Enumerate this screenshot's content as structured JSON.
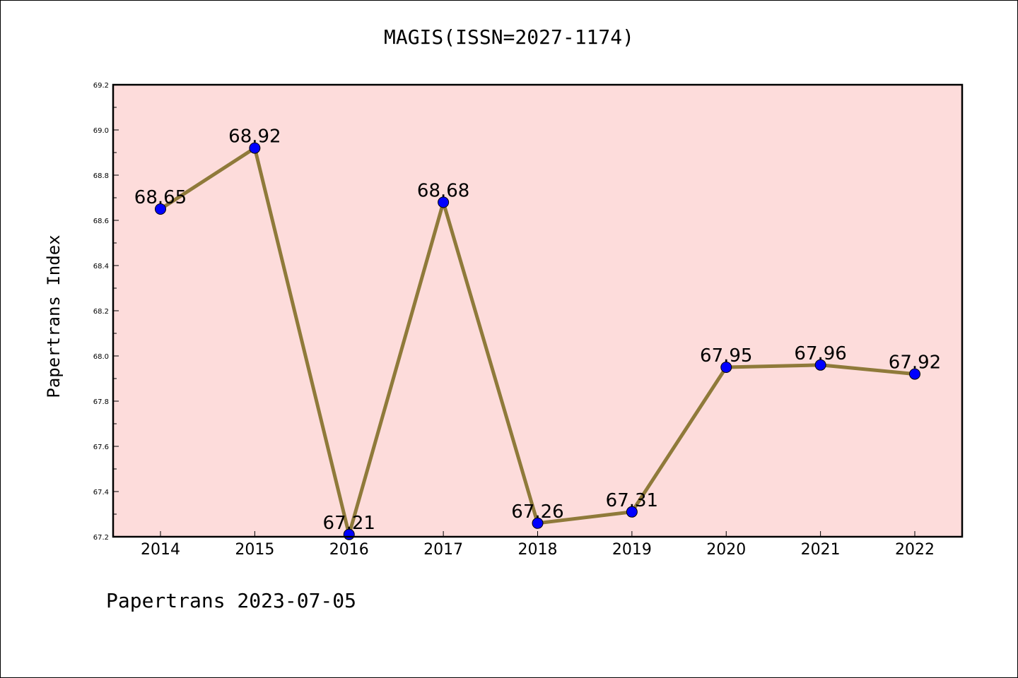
{
  "chart_data": {
    "type": "line",
    "title": "MAGIS(ISSN=2027-1174)",
    "xlabel": "",
    "ylabel": "Papertrans Index",
    "footer": "Papertrans 2023-07-05",
    "x": [
      "2014",
      "2015",
      "2016",
      "2017",
      "2018",
      "2019",
      "2020",
      "2021",
      "2022"
    ],
    "values": [
      68.65,
      68.92,
      67.21,
      68.68,
      67.26,
      67.31,
      67.95,
      67.96,
      67.92
    ],
    "point_labels": [
      "68.65",
      "68.92",
      "67.21",
      "68.68",
      "67.26",
      "67.31",
      "67.95",
      "67.96",
      "67.92"
    ],
    "ylim": [
      67.2,
      69.2
    ],
    "yticks": [
      "67.2",
      "67.4",
      "67.6",
      "67.8",
      "68.0",
      "68.2",
      "68.4",
      "68.6",
      "68.8",
      "69.0",
      "69.2"
    ],
    "grid": false,
    "colors": {
      "background": "#fddcdb",
      "line": "#8f7a3a",
      "marker": "#0000ff"
    }
  }
}
